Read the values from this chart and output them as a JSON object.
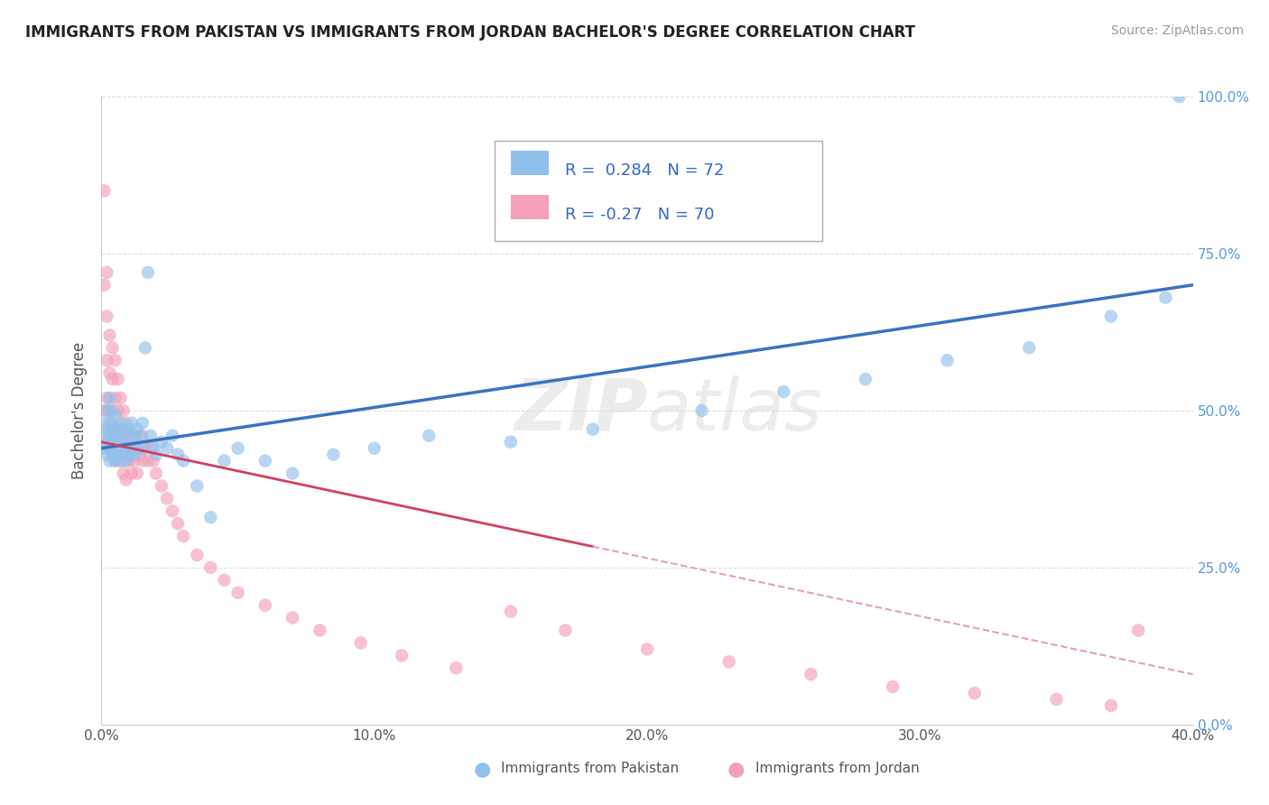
{
  "title": "IMMIGRANTS FROM PAKISTAN VS IMMIGRANTS FROM JORDAN BACHELOR'S DEGREE CORRELATION CHART",
  "source": "Source: ZipAtlas.com",
  "ylabel": "Bachelor's Degree",
  "watermark": "ZIPatlas",
  "legend_pakistan": "Immigrants from Pakistan",
  "legend_jordan": "Immigrants from Jordan",
  "r_pakistan": 0.284,
  "n_pakistan": 72,
  "r_jordan": -0.27,
  "n_jordan": 70,
  "xlim": [
    0.0,
    0.4
  ],
  "ylim": [
    0.0,
    1.0
  ],
  "xticks": [
    0.0,
    0.1,
    0.2,
    0.3,
    0.4
  ],
  "yticks": [
    0.0,
    0.25,
    0.5,
    0.75,
    1.0
  ],
  "xtick_labels": [
    "0.0%",
    "10.0%",
    "20.0%",
    "30.0%",
    "40.0%"
  ],
  "ytick_labels": [
    "0.0%",
    "25.0%",
    "50.0%",
    "75.0%",
    "100.0%"
  ],
  "color_pakistan": "#92C0EC",
  "color_jordan": "#F4A0B8",
  "line_color_pakistan": "#3B72C0",
  "line_color_jordan": "#D04060",
  "line_color_jordan_dash": "#E8A0B0",
  "background_color": "#FFFFFF",
  "grid_color": "#DDDDDD",
  "pk_line_x0": 0.0,
  "pk_line_y0": 0.44,
  "pk_line_x1": 0.4,
  "pk_line_y1": 0.7,
  "jo_line_x0": 0.0,
  "jo_line_y0": 0.45,
  "jo_line_x1": 0.4,
  "jo_line_y1": 0.08,
  "pakistan_x": [
    0.001,
    0.001,
    0.001,
    0.002,
    0.002,
    0.002,
    0.002,
    0.003,
    0.003,
    0.003,
    0.003,
    0.003,
    0.004,
    0.004,
    0.004,
    0.004,
    0.005,
    0.005,
    0.005,
    0.005,
    0.006,
    0.006,
    0.006,
    0.007,
    0.007,
    0.007,
    0.008,
    0.008,
    0.008,
    0.009,
    0.009,
    0.009,
    0.01,
    0.01,
    0.011,
    0.011,
    0.012,
    0.012,
    0.013,
    0.013,
    0.014,
    0.015,
    0.015,
    0.016,
    0.017,
    0.018,
    0.019,
    0.02,
    0.022,
    0.024,
    0.026,
    0.028,
    0.03,
    0.035,
    0.04,
    0.045,
    0.05,
    0.06,
    0.07,
    0.085,
    0.1,
    0.12,
    0.15,
    0.18,
    0.22,
    0.25,
    0.28,
    0.31,
    0.34,
    0.37,
    0.39,
    0.395
  ],
  "pakistan_y": [
    0.44,
    0.46,
    0.48,
    0.43,
    0.45,
    0.47,
    0.5,
    0.42,
    0.44,
    0.46,
    0.48,
    0.52,
    0.43,
    0.45,
    0.47,
    0.5,
    0.42,
    0.44,
    0.46,
    0.49,
    0.43,
    0.45,
    0.47,
    0.42,
    0.44,
    0.48,
    0.43,
    0.45,
    0.47,
    0.42,
    0.44,
    0.46,
    0.43,
    0.47,
    0.44,
    0.48,
    0.43,
    0.46,
    0.44,
    0.47,
    0.46,
    0.44,
    0.48,
    0.6,
    0.72,
    0.46,
    0.44,
    0.43,
    0.45,
    0.44,
    0.46,
    0.43,
    0.42,
    0.38,
    0.33,
    0.42,
    0.44,
    0.42,
    0.4,
    0.43,
    0.44,
    0.46,
    0.45,
    0.47,
    0.5,
    0.53,
    0.55,
    0.58,
    0.6,
    0.65,
    0.68,
    1.0
  ],
  "jordan_x": [
    0.001,
    0.001,
    0.001,
    0.002,
    0.002,
    0.002,
    0.002,
    0.003,
    0.003,
    0.003,
    0.004,
    0.004,
    0.004,
    0.005,
    0.005,
    0.005,
    0.005,
    0.006,
    0.006,
    0.006,
    0.007,
    0.007,
    0.007,
    0.008,
    0.008,
    0.008,
    0.009,
    0.009,
    0.009,
    0.01,
    0.01,
    0.011,
    0.011,
    0.012,
    0.012,
    0.013,
    0.013,
    0.014,
    0.015,
    0.015,
    0.016,
    0.017,
    0.018,
    0.019,
    0.02,
    0.022,
    0.024,
    0.026,
    0.028,
    0.03,
    0.035,
    0.04,
    0.045,
    0.05,
    0.06,
    0.07,
    0.08,
    0.095,
    0.11,
    0.13,
    0.15,
    0.17,
    0.2,
    0.23,
    0.26,
    0.29,
    0.32,
    0.35,
    0.37,
    0.38
  ],
  "jordan_y": [
    0.85,
    0.7,
    0.5,
    0.72,
    0.65,
    0.58,
    0.52,
    0.62,
    0.56,
    0.5,
    0.6,
    0.55,
    0.48,
    0.58,
    0.52,
    0.47,
    0.42,
    0.55,
    0.5,
    0.44,
    0.52,
    0.47,
    0.42,
    0.5,
    0.45,
    0.4,
    0.48,
    0.43,
    0.39,
    0.46,
    0.42,
    0.44,
    0.4,
    0.46,
    0.42,
    0.44,
    0.4,
    0.43,
    0.46,
    0.42,
    0.44,
    0.42,
    0.44,
    0.42,
    0.4,
    0.38,
    0.36,
    0.34,
    0.32,
    0.3,
    0.27,
    0.25,
    0.23,
    0.21,
    0.19,
    0.17,
    0.15,
    0.13,
    0.11,
    0.09,
    0.18,
    0.15,
    0.12,
    0.1,
    0.08,
    0.06,
    0.05,
    0.04,
    0.03,
    0.15
  ]
}
